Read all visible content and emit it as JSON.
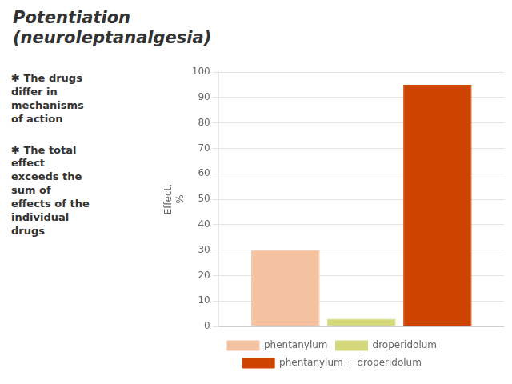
{
  "chart_data": {
    "type": "bar",
    "title": "Potentiation\n(neuroleptanalgesia)",
    "annotations": [
      "✱ The drugs\ndiffer in\nmechanisms\nof action",
      "✱ The total\neffect\nexceeds the\nsum of\neffects of the\nindividual\ndrugs"
    ],
    "ylabel": "Effect,\n%",
    "categories": [
      null
    ],
    "series": [
      {
        "name": "phentanylum",
        "color": "#F4C2A1",
        "values": [
          30
        ]
      },
      {
        "name": "droperidolum",
        "color": "#D4D87A",
        "values": [
          3
        ]
      },
      {
        "name": "phentanylum + droperidolum",
        "color": "#CC4400",
        "values": [
          95
        ]
      }
    ],
    "ylim": [
      0,
      100
    ],
    "yticks": [
      0,
      10,
      20,
      30,
      40,
      50,
      60,
      70,
      80,
      90,
      100
    ],
    "grid": true,
    "legend": "bottom",
    "tick_labels": "y"
  }
}
